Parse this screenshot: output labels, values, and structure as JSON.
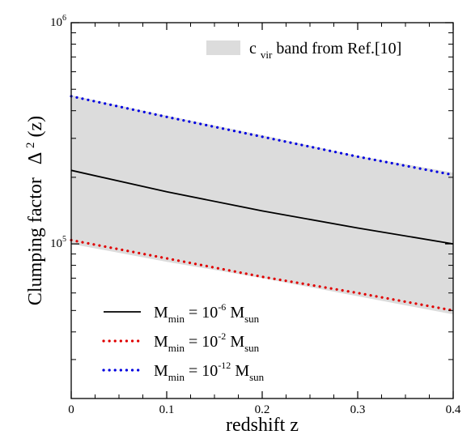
{
  "chart_data": {
    "type": "line",
    "xlabel": "redshift z",
    "ylabel": "Clumping factor",
    "ylabel_symbol": "Δ",
    "ylabel_sup": "2",
    "ylabel_arg": "(z)",
    "xlim": [
      0,
      0.4
    ],
    "ylim": [
      20000,
      1000000
    ],
    "yscale": "log",
    "x_ticks": [
      {
        "value": 0,
        "label": "0"
      },
      {
        "value": 0.1,
        "label": "0.1"
      },
      {
        "value": 0.2,
        "label": "0.2"
      },
      {
        "value": 0.3,
        "label": "0.3"
      },
      {
        "value": 0.4,
        "label": "0.4"
      }
    ],
    "y_major_ticks": [
      {
        "value": 100000,
        "base": "10",
        "exp": "5"
      },
      {
        "value": 1000000,
        "base": "10",
        "exp": "6"
      }
    ],
    "grid": false,
    "band": {
      "label_main": "c",
      "label_sub": "vir",
      "label_rest": " band from Ref.[10]",
      "color": "#dcdcdc",
      "x": [
        0,
        0.1,
        0.2,
        0.3,
        0.4
      ],
      "upper": [
        470000,
        380000,
        310000,
        250000,
        210000
      ],
      "lower": [
        100000,
        83000,
        70000,
        58000,
        48000
      ]
    },
    "series": [
      {
        "m": "M",
        "sub": "min",
        "eq": " = 10",
        "exp": "-6",
        "unit": " M",
        "unit_sub": "sun",
        "color": "#000000",
        "style": "solid",
        "x": [
          0,
          0.1,
          0.2,
          0.3,
          0.4
        ],
        "y": [
          215000,
          172000,
          141000,
          118000,
          100000
        ]
      },
      {
        "m": "M",
        "sub": "min",
        "eq": " = 10",
        "exp": "-2",
        "unit": " M",
        "unit_sub": "sun",
        "color": "#e00000",
        "style": "dotted",
        "x": [
          0,
          0.1,
          0.2,
          0.3,
          0.4
        ],
        "y": [
          104000,
          86000,
          71000,
          60000,
          50000
        ]
      },
      {
        "m": "M",
        "sub": "min",
        "eq": " = 10",
        "exp": "-12",
        "unit": " M",
        "unit_sub": "sun",
        "color": "#0000e0",
        "style": "dotted",
        "x": [
          0,
          0.1,
          0.2,
          0.3,
          0.4
        ],
        "y": [
          465000,
          375000,
          305000,
          248000,
          205000
        ]
      }
    ]
  }
}
